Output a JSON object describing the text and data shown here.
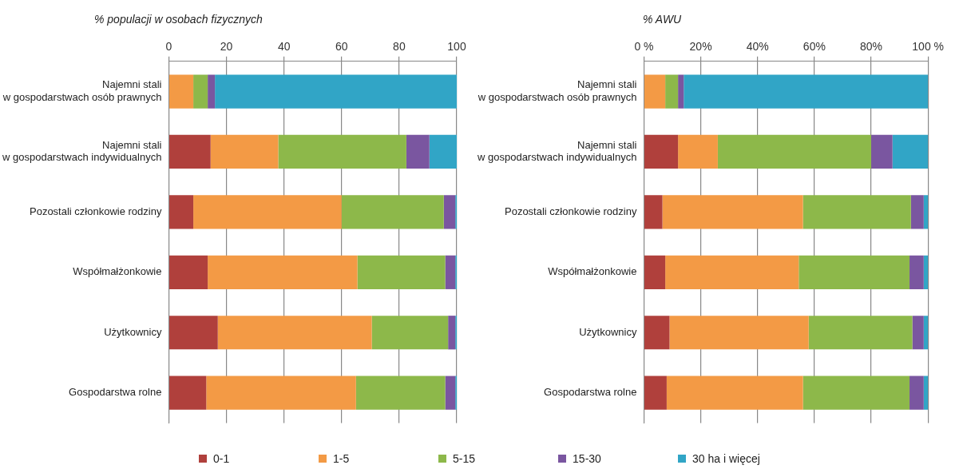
{
  "chart_data": [
    {
      "type": "bar",
      "orientation": "horizontal",
      "stacked": true,
      "title": "% populacji w osobach fizycznych",
      "categories": [
        "Najemni stali\nw gospodarstwach osób prawnych",
        "Najemni stali\nw gospodarstwach indywidualnych",
        "Pozostali członkowie rodziny",
        "Współmałżonkowie",
        "Użytkownicy",
        "Gospodarstwa rolne"
      ],
      "series": [
        {
          "name": "0-1",
          "color": "#b0403c",
          "values": [
            0,
            14.5,
            8.5,
            13.5,
            17,
            13
          ]
        },
        {
          "name": "1-5",
          "color": "#f39a45",
          "values": [
            8.5,
            23.5,
            51.5,
            52,
            53.5,
            52
          ]
        },
        {
          "name": "5-15",
          "color": "#8db84a",
          "values": [
            5,
            44.5,
            35.5,
            30.5,
            26.5,
            31
          ]
        },
        {
          "name": "15-30",
          "color": "#7a56a0",
          "values": [
            2.5,
            8,
            4,
            3.5,
            2.5,
            3.5
          ]
        },
        {
          "name": "30 ha i więcej",
          "color": "#31a5c6",
          "values": [
            84,
            9.5,
            0.5,
            0.5,
            0.5,
            0.5
          ]
        }
      ],
      "xlim": [
        0,
        100
      ],
      "xticks": [
        0,
        20,
        40,
        60,
        80,
        100
      ],
      "grid": "x",
      "legend": "bottom"
    },
    {
      "type": "bar",
      "orientation": "horizontal",
      "stacked": true,
      "title": "% AWU",
      "categories": [
        "Najemni stali\nw gospodarstwach osób prawnych",
        "Najemni stali\nw gospodarstwach indywidualnych",
        "Pozostali członkowie rodziny",
        "Współmałżonkowie",
        "Użytkownicy",
        "Gospodarstwa rolne"
      ],
      "series": [
        {
          "color": "#b0403c",
          "values": [
            0,
            12,
            6.5,
            7.5,
            9,
            8
          ]
        },
        {
          "color": "#f39a45",
          "values": [
            7.5,
            14,
            49.5,
            47,
            49,
            48
          ]
        },
        {
          "color": "#8db84a",
          "values": [
            4.5,
            54,
            38,
            39,
            36.5,
            37.5
          ]
        },
        {
          "color": "#7a56a0",
          "values": [
            2,
            7.5,
            4.5,
            5,
            4,
            5
          ]
        },
        {
          "color": "#31a5c6",
          "values": [
            86,
            12.5,
            1.5,
            1.5,
            1.5,
            1.5
          ]
        }
      ],
      "xlim": [
        0,
        100
      ],
      "xticks": [
        {
          "value": 0,
          "label": "0 %"
        },
        {
          "value": 20,
          "label": "20%"
        },
        {
          "value": 40,
          "label": "40%"
        },
        {
          "value": 60,
          "label": "60%"
        },
        {
          "value": 80,
          "label": "80%"
        },
        {
          "value": 100,
          "label": "100 %"
        }
      ],
      "grid": "x",
      "legend": false
    }
  ]
}
